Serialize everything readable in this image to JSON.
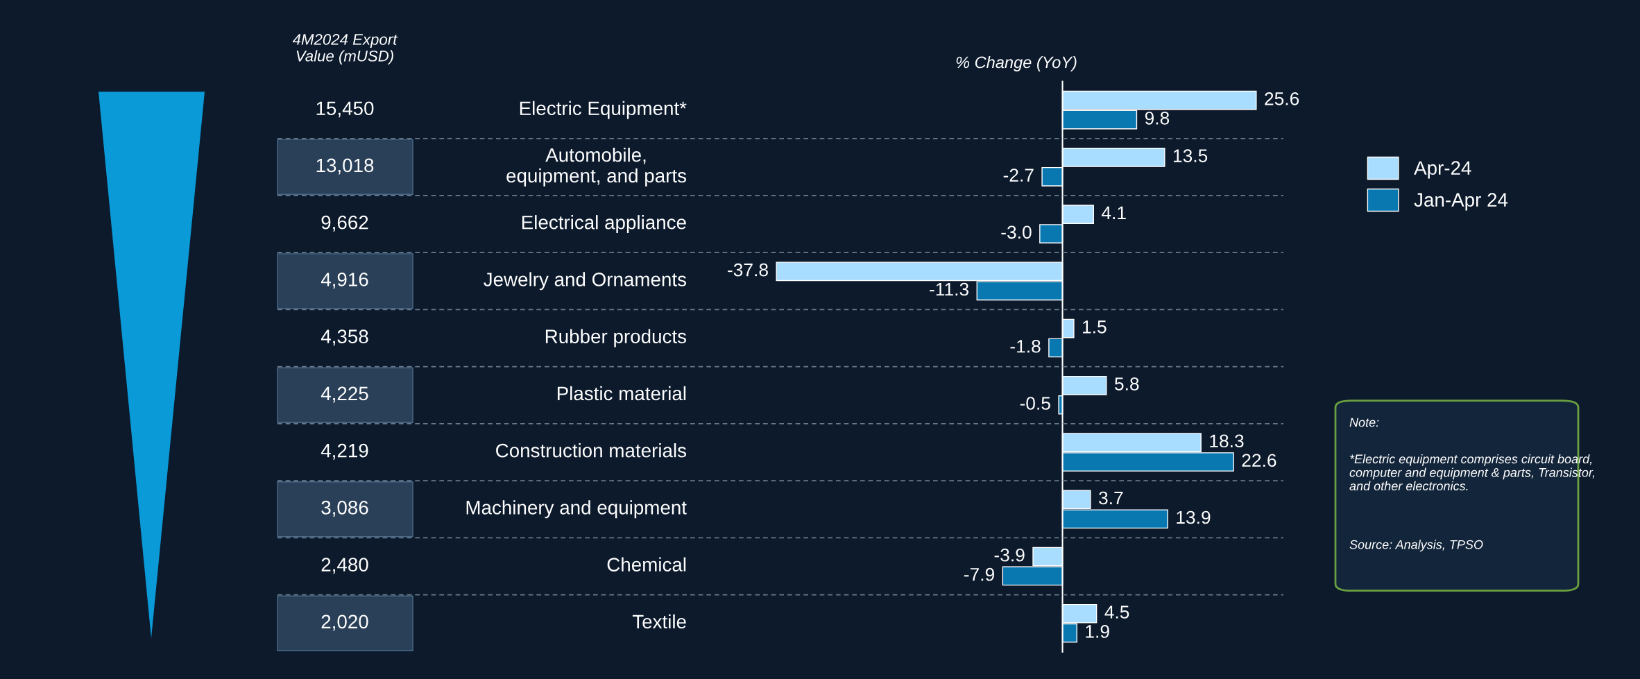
{
  "chart_data": {
    "type": "bar",
    "orientation": "horizontal",
    "xlabel": "% Change (YoY)",
    "categories": [
      "Electric Equipment*",
      "Automobile,\nequipment, and parts",
      "Electrical appliance",
      "Jewelry and Ornaments",
      "Rubber products",
      "Plastic material",
      "Construction materials",
      "Machinery and equipment",
      "Chemical",
      "Textile"
    ],
    "series": [
      {
        "name": "Apr-24",
        "color": "#a8ddff",
        "values": [
          25.6,
          13.5,
          4.1,
          -37.8,
          1.5,
          5.8,
          18.3,
          3.7,
          -3.9,
          4.5
        ],
        "value_labels": [
          "25.6",
          "13.5",
          "4.1",
          "-37.8",
          "1.5",
          "5.8",
          "18.3",
          "3.7",
          "-3.9",
          "4.5"
        ]
      },
      {
        "name": "Jan-Apr 24",
        "color": "#0a78b0",
        "values": [
          9.8,
          -2.7,
          -3.0,
          -11.3,
          -1.8,
          -0.5,
          22.6,
          13.9,
          -7.9,
          1.9
        ],
        "value_labels": [
          "9.8",
          "-2.7",
          "-3.0",
          "-11.3",
          "-1.8",
          "-0.5",
          "22.6",
          "13.9",
          "-7.9",
          "1.9"
        ]
      }
    ],
    "tick_labels": false,
    "legend": "right",
    "annotations": [
      "4M2024 Export\nValue (mUSD)",
      "15,450",
      "13,018",
      "9,662",
      "4,916",
      "4,358",
      "4,225",
      "4,219",
      "3,086",
      "2,480",
      "2,020",
      "Note:",
      "*Electric equipment comprises circuit board, computer and equipment & parts, Transistor, and other electronics.",
      "Source: Analysis, TPSO"
    ]
  }
}
